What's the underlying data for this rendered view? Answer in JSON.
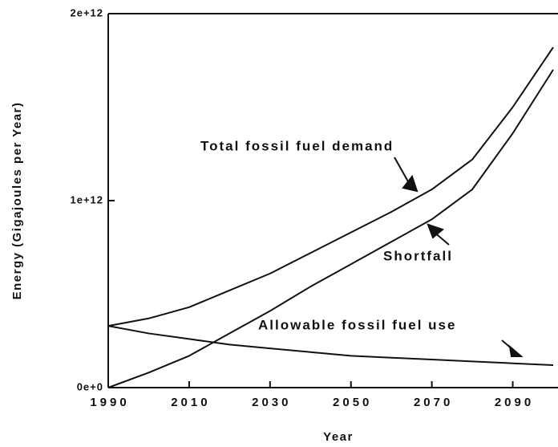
{
  "chart_data": {
    "type": "line",
    "xlabel": "Year",
    "ylabel": "Energy (Gigajoules per Year)",
    "x": [
      1990,
      2000,
      2010,
      2020,
      2030,
      2040,
      2050,
      2060,
      2070,
      2080,
      2090,
      2100
    ],
    "series": [
      {
        "name": "Total fossil fuel demand",
        "color": "#111111",
        "values": [
          330000000000,
          370000000000,
          430000000000,
          520000000000,
          610000000000,
          720000000000,
          830000000000,
          940000000000,
          1060000000000,
          1220000000000,
          1500000000000,
          1820000000000
        ]
      },
      {
        "name": "Shortfall",
        "color": "#111111",
        "values": [
          0,
          80000000000,
          170000000000,
          290000000000,
          410000000000,
          540000000000,
          660000000000,
          780000000000,
          900000000000,
          1060000000000,
          1360000000000,
          1700000000000
        ]
      },
      {
        "name": "Allowable fossil fuel use",
        "color": "#111111",
        "values": [
          330000000000,
          290000000000,
          260000000000,
          230000000000,
          210000000000,
          190000000000,
          170000000000,
          160000000000,
          150000000000,
          140000000000,
          130000000000,
          120000000000
        ]
      }
    ],
    "xlim": [
      1990,
      2100
    ],
    "xticks": [
      1990,
      2010,
      2030,
      2050,
      2070,
      2090
    ],
    "ylim": [
      0,
      2000000000000
    ],
    "yticks": [
      {
        "value": 0,
        "label": "0e+0"
      },
      {
        "value": 1000000000000,
        "label": "1e+12"
      },
      {
        "value": 2000000000000,
        "label": "2e+12"
      }
    ]
  }
}
